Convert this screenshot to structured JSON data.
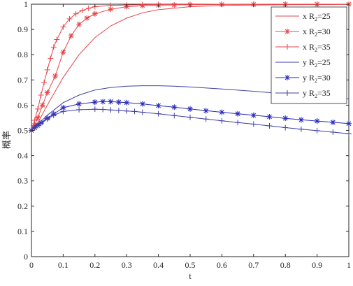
{
  "chart_data": {
    "type": "line",
    "xlabel": "t",
    "ylabel": "概率",
    "xlim": [
      0,
      1
    ],
    "ylim": [
      0,
      1
    ],
    "xticks": [
      "0",
      "0.1",
      "0.2",
      "0.3",
      "0.4",
      "0.5",
      "0.6",
      "0.7",
      "0.8",
      "0.9",
      "1"
    ],
    "yticks": [
      "0",
      "0.1",
      "0.2",
      "0.3",
      "0.4",
      "0.5",
      "0.6",
      "0.7",
      "0.8",
      "0.9",
      "1"
    ],
    "grid": false,
    "legend_position": "top-right",
    "series": [
      {
        "name": "x R2=25",
        "legend_prefix": "x R",
        "legend_sub": "2",
        "legend_suffix": "=25",
        "color": "#e8454a",
        "marker": "none",
        "x": [
          0,
          0.02,
          0.05,
          0.1,
          0.15,
          0.2,
          0.25,
          0.3,
          0.35,
          0.4,
          0.5,
          0.6,
          0.8,
          1.0
        ],
        "y": [
          0.5,
          0.53,
          0.6,
          0.71,
          0.8,
          0.868,
          0.914,
          0.945,
          0.966,
          0.978,
          0.99,
          0.995,
          0.998,
          0.999
        ]
      },
      {
        "name": "x R2=30",
        "legend_prefix": "x R",
        "legend_sub": "2",
        "legend_suffix": "=30",
        "color": "#e8454a",
        "marker": "asterisk",
        "x": [
          0,
          0.01,
          0.02,
          0.035,
          0.05,
          0.075,
          0.1,
          0.125,
          0.15,
          0.175,
          0.2,
          0.25,
          0.3,
          0.35,
          0.4,
          0.45,
          0.5,
          0.6,
          0.7,
          0.8,
          0.9,
          1.0
        ],
        "y": [
          0.5,
          0.52,
          0.55,
          0.6,
          0.65,
          0.715,
          0.81,
          0.875,
          0.92,
          0.945,
          0.962,
          0.98,
          0.99,
          0.994,
          0.996,
          0.997,
          0.998,
          0.999,
          0.999,
          1.0,
          1.0,
          1.0
        ]
      },
      {
        "name": "x R2=35",
        "legend_prefix": "x R",
        "legend_sub": "2",
        "legend_suffix": "=35",
        "color": "#e8454a",
        "marker": "plus",
        "x": [
          0,
          0.01,
          0.02,
          0.03,
          0.04,
          0.05,
          0.06,
          0.07,
          0.08,
          0.1,
          0.12,
          0.14,
          0.16,
          0.18,
          0.2,
          0.25,
          0.3,
          0.35,
          0.4,
          0.5,
          0.6,
          0.7,
          0.8,
          0.9,
          1.0
        ],
        "y": [
          0.5,
          0.54,
          0.585,
          0.64,
          0.69,
          0.74,
          0.785,
          0.83,
          0.86,
          0.91,
          0.942,
          0.962,
          0.975,
          0.984,
          0.99,
          0.995,
          0.997,
          0.998,
          0.999,
          0.999,
          1.0,
          1.0,
          1.0,
          1.0,
          1.0
        ]
      },
      {
        "name": "y R2=25",
        "legend_prefix": "y R",
        "legend_sub": "2",
        "legend_suffix": "=25",
        "color": "#3f3fa8",
        "marker": "none",
        "x": [
          0,
          0.05,
          0.1,
          0.15,
          0.2,
          0.25,
          0.3,
          0.35,
          0.4,
          0.45,
          0.5,
          0.6,
          0.7,
          0.8,
          0.9,
          1.0
        ],
        "y": [
          0.5,
          0.56,
          0.61,
          0.64,
          0.66,
          0.67,
          0.675,
          0.677,
          0.677,
          0.675,
          0.672,
          0.664,
          0.655,
          0.645,
          0.635,
          0.625
        ]
      },
      {
        "name": "y R2=30",
        "legend_prefix": "y R",
        "legend_sub": "2",
        "legend_suffix": "=30",
        "color": "#2a2ac0",
        "marker": "asterisk",
        "x": [
          0,
          0.01,
          0.02,
          0.03,
          0.05,
          0.07,
          0.1,
          0.15,
          0.2,
          0.225,
          0.25,
          0.275,
          0.3,
          0.35,
          0.4,
          0.45,
          0.5,
          0.55,
          0.6,
          0.65,
          0.7,
          0.75,
          0.8,
          0.85,
          0.9,
          0.95,
          1.0
        ],
        "y": [
          0.5,
          0.51,
          0.52,
          0.53,
          0.548,
          0.565,
          0.59,
          0.605,
          0.612,
          0.614,
          0.614,
          0.612,
          0.61,
          0.605,
          0.598,
          0.592,
          0.585,
          0.578,
          0.572,
          0.566,
          0.56,
          0.554,
          0.548,
          0.542,
          0.537,
          0.532,
          0.527
        ]
      },
      {
        "name": "y R2=35",
        "legend_prefix": "y R",
        "legend_sub": "2",
        "legend_suffix": "=35",
        "color": "#3f3fa8",
        "marker": "plus",
        "x": [
          0,
          0.01,
          0.02,
          0.03,
          0.05,
          0.07,
          0.1,
          0.15,
          0.2,
          0.225,
          0.25,
          0.275,
          0.3,
          0.325,
          0.35,
          0.4,
          0.45,
          0.5,
          0.55,
          0.6,
          0.65,
          0.7,
          0.75,
          0.8,
          0.85,
          0.9,
          0.95,
          1.0
        ],
        "y": [
          0.5,
          0.51,
          0.52,
          0.528,
          0.545,
          0.56,
          0.575,
          0.582,
          0.584,
          0.583,
          0.581,
          0.579,
          0.577,
          0.575,
          0.572,
          0.566,
          0.559,
          0.552,
          0.545,
          0.538,
          0.531,
          0.525,
          0.518,
          0.511,
          0.505,
          0.499,
          0.493,
          0.487
        ]
      }
    ]
  }
}
